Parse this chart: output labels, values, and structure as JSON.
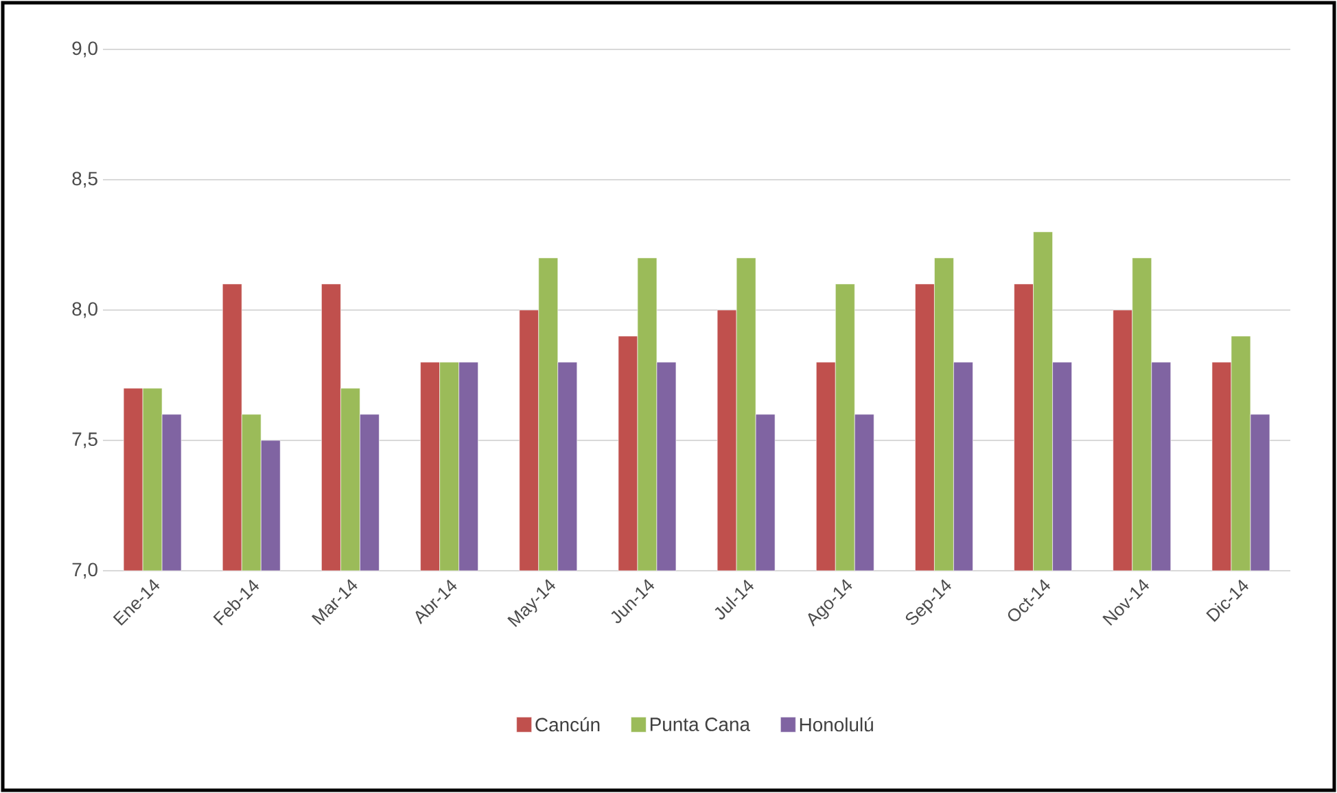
{
  "chart_data": {
    "type": "bar",
    "categories": [
      "Ene-14",
      "Feb-14",
      "Mar-14",
      "Abr-14",
      "May-14",
      "Jun-14",
      "Jul-14",
      "Ago-14",
      "Sep-14",
      "Oct-14",
      "Nov-14",
      "Dic-14"
    ],
    "series": [
      {
        "name": "Cancún",
        "color": "#c0504d",
        "values": [
          7.7,
          8.1,
          8.1,
          7.8,
          8.0,
          7.9,
          8.0,
          7.8,
          8.1,
          8.1,
          8.0,
          7.8
        ]
      },
      {
        "name": "Punta Cana",
        "color": "#9bbb59",
        "values": [
          7.7,
          7.6,
          7.7,
          7.8,
          8.2,
          8.2,
          8.2,
          8.1,
          8.2,
          8.3,
          8.2,
          7.9
        ]
      },
      {
        "name": "Honolulú",
        "color": "#8064a2",
        "values": [
          7.6,
          7.5,
          7.6,
          7.8,
          7.8,
          7.8,
          7.6,
          7.6,
          7.8,
          7.8,
          7.8,
          7.6
        ]
      }
    ],
    "ylim": [
      7.0,
      9.0
    ],
    "yticks": [
      {
        "value": 7.0,
        "label": "7,0"
      },
      {
        "value": 7.5,
        "label": "7,5"
      },
      {
        "value": 8.0,
        "label": "8,0"
      },
      {
        "value": 8.5,
        "label": "8,5"
      },
      {
        "value": 9.0,
        "label": "9,0"
      }
    ],
    "grid": "y",
    "legend": "bottom"
  }
}
